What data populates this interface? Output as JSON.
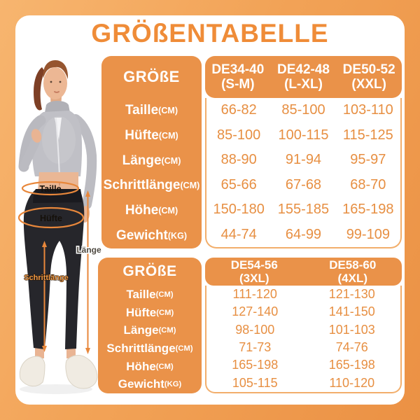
{
  "title": "GRÖßENTABELLE",
  "colors": {
    "accent_orange": "#EA9249",
    "title_orange": "#EF8C38",
    "value_text_orange": "#E78F42",
    "annotation_orange": "#E8873B",
    "panel_white": "#FFFFFF"
  },
  "figure": {
    "annotations": {
      "taille": "Taille",
      "huefte": "Hüfte",
      "laenge": "Länge",
      "schrittlaenge": "Schrittlänge"
    }
  },
  "table1": {
    "corner_label": "GRÖßE",
    "columns": [
      {
        "size": "DE34-40",
        "fit": "(S-M)"
      },
      {
        "size": "DE42-48",
        "fit": "(L-XL)"
      },
      {
        "size": "DE50-52",
        "fit": "(XXL)"
      }
    ],
    "rows": [
      {
        "label": "Taille",
        "unit": "(CM)",
        "values": [
          "66-82",
          "85-100",
          "103-110"
        ]
      },
      {
        "label": "Hüfte",
        "unit": "(CM)",
        "values": [
          "85-100",
          "100-115",
          "115-125"
        ]
      },
      {
        "label": "Länge",
        "unit": "(CM)",
        "values": [
          "88-90",
          "91-94",
          "95-97"
        ]
      },
      {
        "label": "Schrittlänge",
        "unit": "(CM)",
        "values": [
          "65-66",
          "67-68",
          "68-70"
        ]
      },
      {
        "label": "Höhe",
        "unit": "(CM)",
        "values": [
          "150-180",
          "155-185",
          "165-198"
        ]
      },
      {
        "label": "Gewicht",
        "unit": "(KG)",
        "values": [
          "44-74",
          "64-99",
          "99-109"
        ]
      }
    ]
  },
  "table2": {
    "corner_label": "GRÖßE",
    "columns": [
      {
        "size": "DE54-56",
        "fit": "(3XL)"
      },
      {
        "size": "DE58-60",
        "fit": "(4XL)"
      }
    ],
    "rows": [
      {
        "label": "Taille",
        "unit": "(CM)",
        "values": [
          "111-120",
          "121-130"
        ]
      },
      {
        "label": "Hüfte",
        "unit": "(CM)",
        "values": [
          "127-140",
          "141-150"
        ]
      },
      {
        "label": "Länge",
        "unit": "(CM)",
        "values": [
          "98-100",
          "101-103"
        ]
      },
      {
        "label": "Schrittlänge",
        "unit": "(CM)",
        "values": [
          "71-73",
          "74-76"
        ]
      },
      {
        "label": "Höhe",
        "unit": "(CM)",
        "values": [
          "165-198",
          "165-198"
        ]
      },
      {
        "label": "Gewicht",
        "unit": "(KG)",
        "values": [
          "105-115",
          "110-120"
        ]
      }
    ]
  }
}
